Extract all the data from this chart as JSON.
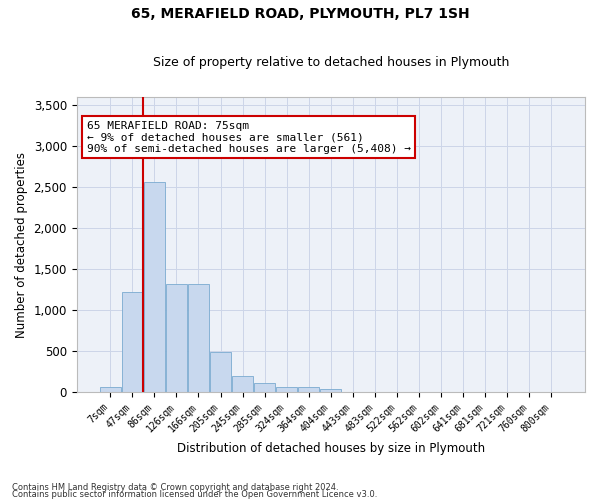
{
  "title1": "65, MERAFIELD ROAD, PLYMOUTH, PL7 1SH",
  "title2": "Size of property relative to detached houses in Plymouth",
  "xlabel": "Distribution of detached houses by size in Plymouth",
  "ylabel": "Number of detached properties",
  "bar_color": "#c8d8ee",
  "bar_edge_color": "#7aaad0",
  "categories": [
    "7sqm",
    "47sqm",
    "86sqm",
    "126sqm",
    "166sqm",
    "205sqm",
    "245sqm",
    "285sqm",
    "324sqm",
    "364sqm",
    "404sqm",
    "443sqm",
    "483sqm",
    "522sqm",
    "562sqm",
    "602sqm",
    "641sqm",
    "681sqm",
    "721sqm",
    "760sqm",
    "800sqm"
  ],
  "values": [
    55,
    1220,
    2560,
    1320,
    1320,
    490,
    195,
    110,
    55,
    55,
    30,
    0,
    0,
    0,
    0,
    0,
    0,
    0,
    0,
    0,
    0
  ],
  "ylim": [
    0,
    3600
  ],
  "yticks": [
    0,
    500,
    1000,
    1500,
    2000,
    2500,
    3000,
    3500
  ],
  "vline_x": 1.5,
  "annotation_text": "65 MERAFIELD ROAD: 75sqm\n← 9% of detached houses are smaller (561)\n90% of semi-detached houses are larger (5,408) →",
  "annotation_box_color": "#ffffff",
  "annotation_box_edge": "#cc0000",
  "footer1": "Contains HM Land Registry data © Crown copyright and database right 2024.",
  "footer2": "Contains public sector information licensed under the Open Government Licence v3.0.",
  "grid_color": "#ccd5e8",
  "bg_color": "#edf1f8",
  "vline_color": "#cc0000",
  "fig_width": 6.0,
  "fig_height": 5.0,
  "dpi": 100
}
